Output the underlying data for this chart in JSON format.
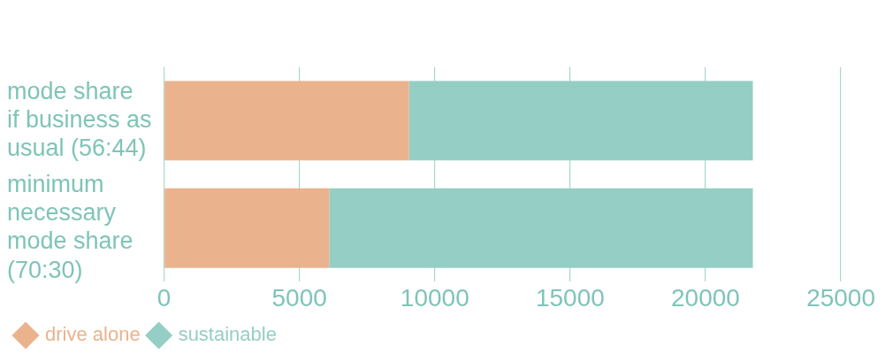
{
  "chart_data": {
    "type": "bar",
    "orientation": "horizontal",
    "stacked": true,
    "categories": [
      "mode share\nif business as\nusual (56:44)",
      "minimum\nnecessary\nmode share\n(70:30)"
    ],
    "series": [
      {
        "name": "drive alone",
        "color": "#eab38d",
        "values": [
          9050,
          6100
        ]
      },
      {
        "name": "sustainable",
        "color": "#95cec4",
        "values": [
          12700,
          15650
        ]
      }
    ],
    "xlim": [
      0,
      25000
    ],
    "xticks": [
      0,
      5000,
      10000,
      15000,
      20000,
      25000
    ],
    "grid": "x",
    "legend": "bottom left"
  }
}
